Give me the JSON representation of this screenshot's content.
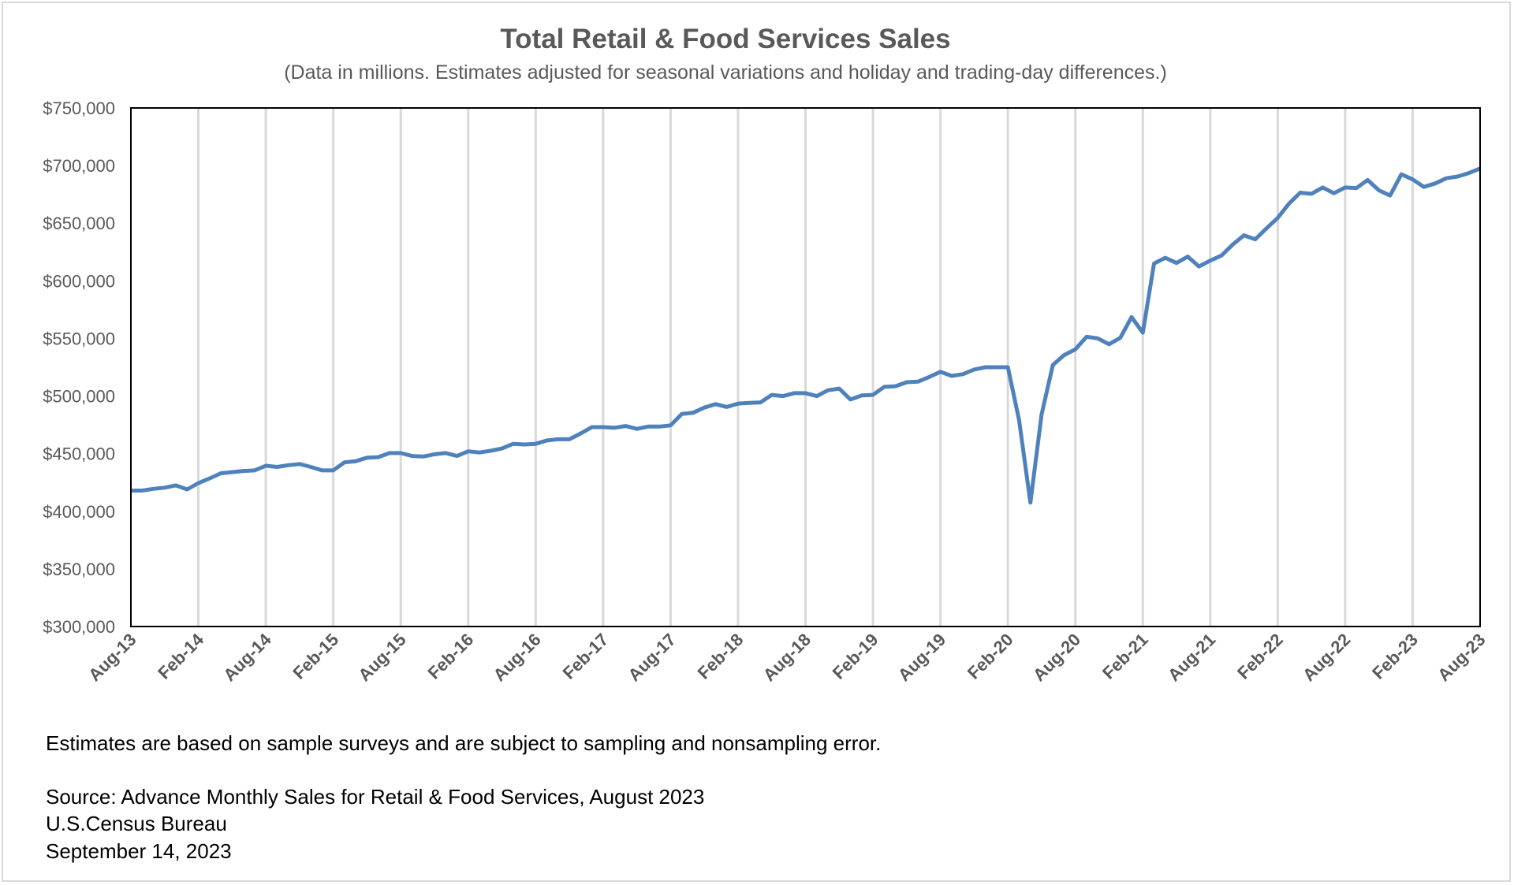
{
  "chart_data": {
    "type": "line",
    "title": "Total Retail & Food Services Sales",
    "subtitle": "(Data in millions. Estimates adjusted for seasonal variations and holiday and trading-day differences.)",
    "xlabel": "",
    "ylabel": "",
    "ylim": [
      300000,
      750000
    ],
    "y_ticks": [
      "$300,000",
      "$350,000",
      "$400,000",
      "$450,000",
      "$500,000",
      "$550,000",
      "$600,000",
      "$650,000",
      "$700,000",
      "$750,000"
    ],
    "x_tick_labels": [
      "Aug-13",
      "Feb-14",
      "Aug-14",
      "Feb-15",
      "Aug-15",
      "Feb-16",
      "Aug-16",
      "Feb-17",
      "Aug-17",
      "Feb-18",
      "Aug-18",
      "Feb-19",
      "Aug-19",
      "Feb-20",
      "Aug-20",
      "Feb-21",
      "Aug-21",
      "Feb-22",
      "Aug-22",
      "Feb-23",
      "Aug-23"
    ],
    "grid": "vertical",
    "legend": "none",
    "line_color": "#4f81bd",
    "series": [
      {
        "x_start": "Aug-13",
        "x_end": "Aug-23",
        "frequency": "monthly",
        "values": [
          418000,
          418000,
          419500,
          420500,
          422500,
          419000,
          424500,
          428500,
          433000,
          434000,
          435000,
          435500,
          439500,
          438500,
          440000,
          441000,
          438500,
          435500,
          435500,
          442500,
          443500,
          446500,
          447000,
          450500,
          450500,
          448000,
          447500,
          449500,
          450500,
          448000,
          452000,
          451000,
          452500,
          454500,
          458500,
          458000,
          458500,
          461500,
          462500,
          462500,
          467500,
          473000,
          473000,
          472500,
          474000,
          471500,
          473500,
          473500,
          474500,
          484500,
          485500,
          490000,
          493000,
          490500,
          493500,
          494000,
          494500,
          501000,
          500000,
          502500,
          502500,
          500000,
          505000,
          506500,
          497000,
          500500,
          501000,
          508000,
          508500,
          512000,
          512500,
          516500,
          521000,
          517500,
          519000,
          523000,
          525000,
          525000,
          525000,
          479000,
          407500,
          484000,
          527000,
          535500,
          540500,
          551500,
          550000,
          545000,
          550500,
          568500,
          555000,
          615000,
          620000,
          615500,
          621000,
          612500,
          617500,
          622000,
          631500,
          639500,
          636000,
          645500,
          654500,
          667000,
          676500,
          675500,
          681000,
          676000,
          681000,
          680500,
          687500,
          678500,
          674000,
          692500,
          688000,
          681500,
          684500,
          689000,
          690500,
          693500,
          697500
        ]
      }
    ]
  },
  "notes": {
    "disclaimer": "Estimates are based on sample surveys and are subject to sampling and nonsampling error.",
    "source": "Source: Advance Monthly Sales for Retail & Food Services, August 2023",
    "agency": "U.S.Census Bureau",
    "date": "September 14, 2023"
  }
}
